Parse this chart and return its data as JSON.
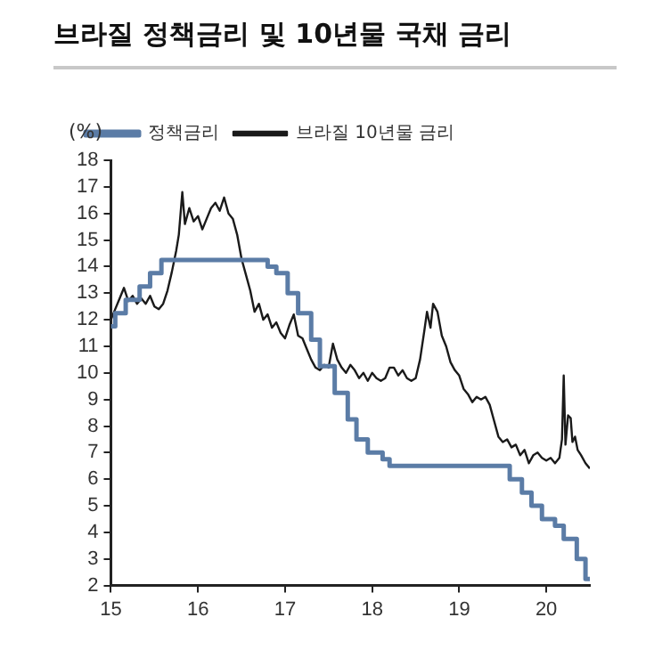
{
  "chart_data": {
    "type": "line",
    "title": "브라질 정책금리 및 10년물 국채 금리",
    "ylabel": "(%)",
    "legend": "top left",
    "grid": false,
    "xlim": [
      15,
      20.5
    ],
    "xticks": [
      15,
      16,
      17,
      18,
      19,
      20
    ],
    "ylim": [
      2,
      18
    ],
    "yticks": [
      2,
      3,
      4,
      5,
      6,
      7,
      8,
      9,
      10,
      11,
      12,
      13,
      14,
      15,
      16,
      17,
      18
    ],
    "series": [
      {
        "name": "정책금리",
        "type": "step",
        "color": "#5b7ca6",
        "x": [
          15,
          15.05,
          15.17,
          15.33,
          15.45,
          15.58,
          16.8,
          16.9,
          17.03,
          17.15,
          17.3,
          17.4,
          17.57,
          17.72,
          17.82,
          17.95,
          18.12,
          18.2,
          19.58,
          19.72,
          19.83,
          19.95,
          20.1,
          20.2,
          20.35,
          20.45,
          20.5
        ],
        "values": [
          11.75,
          12.25,
          12.75,
          13.25,
          13.75,
          14.25,
          14,
          13.75,
          13,
          12.25,
          11.25,
          10.25,
          9.25,
          8.25,
          7.5,
          7,
          6.75,
          6.5,
          6,
          5.5,
          5,
          4.5,
          4.25,
          3.75,
          3,
          2.25,
          2.25
        ]
      },
      {
        "name": "브라질 10년물 금리",
        "type": "line",
        "color": "#1a1a1a",
        "x": [
          15,
          15.05,
          15.1,
          15.15,
          15.2,
          15.25,
          15.3,
          15.35,
          15.4,
          15.45,
          15.5,
          15.55,
          15.6,
          15.65,
          15.7,
          15.75,
          15.78,
          15.82,
          15.85,
          15.9,
          15.95,
          16,
          16.05,
          16.1,
          16.15,
          16.2,
          16.25,
          16.3,
          16.35,
          16.4,
          16.45,
          16.5,
          16.55,
          16.6,
          16.65,
          16.7,
          16.75,
          16.8,
          16.85,
          16.9,
          16.95,
          17,
          17.05,
          17.1,
          17.15,
          17.2,
          17.25,
          17.3,
          17.35,
          17.4,
          17.45,
          17.5,
          17.55,
          17.6,
          17.65,
          17.7,
          17.75,
          17.8,
          17.85,
          17.9,
          17.95,
          18,
          18.05,
          18.1,
          18.15,
          18.2,
          18.25,
          18.3,
          18.35,
          18.4,
          18.45,
          18.5,
          18.55,
          18.6,
          18.63,
          18.67,
          18.7,
          18.75,
          18.8,
          18.85,
          18.9,
          18.95,
          19,
          19.05,
          19.1,
          19.15,
          19.2,
          19.25,
          19.3,
          19.35,
          19.4,
          19.45,
          19.5,
          19.55,
          19.6,
          19.65,
          19.7,
          19.75,
          19.8,
          19.85,
          19.9,
          19.95,
          20,
          20.05,
          20.1,
          20.15,
          20.18,
          20.2,
          20.22,
          20.25,
          20.28,
          20.3,
          20.33,
          20.36,
          20.4,
          20.45,
          20.5
        ],
        "values": [
          12,
          12.4,
          12.8,
          13.2,
          12.7,
          12.9,
          12.6,
          12.8,
          12.6,
          12.9,
          12.5,
          12.4,
          12.6,
          13.1,
          13.8,
          14.6,
          15.2,
          16.8,
          15.6,
          16.2,
          15.7,
          15.9,
          15.4,
          15.8,
          16.2,
          16.4,
          16.1,
          16.6,
          16,
          15.8,
          15.2,
          14.3,
          13.7,
          13.1,
          12.3,
          12.6,
          12,
          12.2,
          11.7,
          11.9,
          11.5,
          11.3,
          11.8,
          12.2,
          11.4,
          11.3,
          10.9,
          10.5,
          10.2,
          10.1,
          10.3,
          10.2,
          11.1,
          10.5,
          10.2,
          10,
          10.3,
          10.1,
          9.8,
          10,
          9.7,
          10,
          9.8,
          9.7,
          9.8,
          10.2,
          10.2,
          9.9,
          10.1,
          9.8,
          9.7,
          9.8,
          10.5,
          11.6,
          12.3,
          11.7,
          12.6,
          12.3,
          11.4,
          11,
          10.4,
          10.1,
          9.9,
          9.4,
          9.2,
          8.9,
          9.1,
          9.0,
          9.1,
          8.8,
          8.2,
          7.6,
          7.4,
          7.5,
          7.2,
          7.3,
          6.9,
          7.1,
          6.6,
          6.9,
          7.0,
          6.8,
          6.7,
          6.8,
          6.6,
          6.8,
          7.5,
          9.9,
          7.3,
          8.4,
          8.3,
          7.4,
          7.6,
          7.1,
          6.9,
          6.6,
          6.4
        ]
      }
    ]
  }
}
